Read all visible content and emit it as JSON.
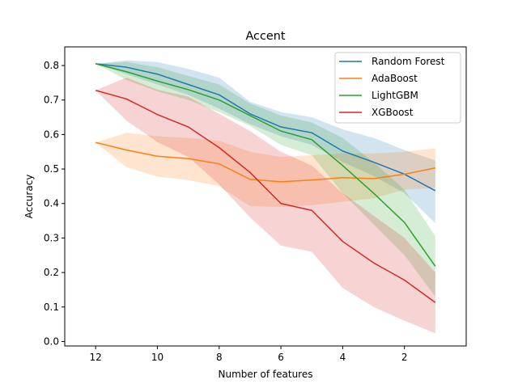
{
  "chart_data": {
    "type": "line",
    "title": "Accent",
    "xlabel": "Number of features",
    "ylabel": "Accuracy",
    "x": [
      12,
      11,
      10,
      9,
      8,
      7,
      6,
      5,
      4,
      3,
      2,
      1
    ],
    "xlim": [
      13,
      0
    ],
    "ylim": [
      -0.013,
      0.854
    ],
    "xticks": [
      12,
      10,
      8,
      6,
      4,
      2
    ],
    "yticks": [
      0.0,
      0.1,
      0.2,
      0.3,
      0.4,
      0.5,
      0.6,
      0.7,
      0.8
    ],
    "xtick_labels": [
      "12",
      "10",
      "8",
      "6",
      "4",
      "2"
    ],
    "ytick_labels": [
      "0.0",
      "0.1",
      "0.2",
      "0.3",
      "0.4",
      "0.5",
      "0.6",
      "0.7",
      "0.8"
    ],
    "grid": false,
    "legend_position": "top-right",
    "series": [
      {
        "name": "Random Forest",
        "color": "#1f77b4",
        "values": [
          0.805,
          0.795,
          0.775,
          0.745,
          0.715,
          0.66,
          0.622,
          0.605,
          0.552,
          0.52,
          0.485,
          0.437
        ],
        "lower": [
          0.805,
          0.775,
          0.745,
          0.715,
          0.675,
          0.63,
          0.595,
          0.57,
          0.52,
          0.48,
          0.43,
          0.343
        ],
        "upper": [
          0.805,
          0.815,
          0.81,
          0.79,
          0.765,
          0.695,
          0.665,
          0.65,
          0.615,
          0.59,
          0.555,
          0.525
        ]
      },
      {
        "name": "AdaBoost",
        "color": "#ff7f0e",
        "values": [
          0.577,
          0.555,
          0.537,
          0.53,
          0.515,
          0.47,
          0.463,
          0.468,
          0.475,
          0.472,
          0.485,
          0.503
        ],
        "lower": [
          0.577,
          0.505,
          0.478,
          0.468,
          0.45,
          0.392,
          0.39,
          0.395,
          0.405,
          0.415,
          0.44,
          0.445
        ],
        "upper": [
          0.577,
          0.605,
          0.595,
          0.59,
          0.582,
          0.55,
          0.535,
          0.54,
          0.545,
          0.545,
          0.55,
          0.56
        ]
      },
      {
        "name": "LightGBM",
        "color": "#2ca02c",
        "values": [
          0.805,
          0.782,
          0.755,
          0.73,
          0.7,
          0.655,
          0.61,
          0.585,
          0.51,
          0.43,
          0.345,
          0.218
        ],
        "lower": [
          0.805,
          0.758,
          0.725,
          0.7,
          0.665,
          0.625,
          0.57,
          0.54,
          0.43,
          0.34,
          0.25,
          0.13
        ],
        "upper": [
          0.805,
          0.81,
          0.795,
          0.77,
          0.745,
          0.69,
          0.655,
          0.635,
          0.59,
          0.52,
          0.44,
          0.305
        ]
      },
      {
        "name": "XGBoost",
        "color": "#d62728",
        "values": [
          0.728,
          0.703,
          0.658,
          0.622,
          0.562,
          0.49,
          0.4,
          0.38,
          0.29,
          0.228,
          0.178,
          0.113
        ],
        "lower": [
          0.728,
          0.64,
          0.578,
          0.535,
          0.455,
          0.36,
          0.278,
          0.26,
          0.155,
          0.1,
          0.06,
          0.024
        ],
        "upper": [
          0.728,
          0.765,
          0.73,
          0.71,
          0.66,
          0.61,
          0.55,
          0.51,
          0.43,
          0.365,
          0.3,
          0.2
        ]
      }
    ]
  }
}
